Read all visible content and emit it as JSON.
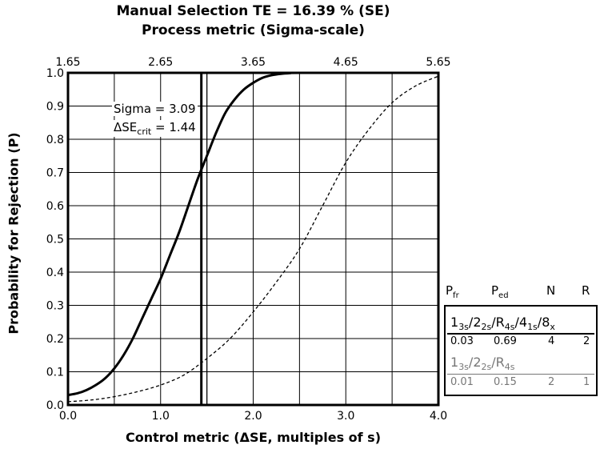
{
  "chart_data": {
    "type": "line",
    "title": "Manual Selection TE = 16.39 % (SE)",
    "subtitle": "Process metric (Sigma-scale)",
    "xlabel": "Control metric (ΔSE, multiples of s)",
    "ylabel": "Probability for Rejection (P)",
    "xlim": [
      0,
      4
    ],
    "ylim": [
      0,
      1
    ],
    "x_ticks": [
      0.0,
      1.0,
      2.0,
      3.0,
      4.0
    ],
    "x_tick_labels": [
      "0.0",
      "1.0",
      "2.0",
      "3.0",
      "4.0"
    ],
    "y_ticks": [
      0.0,
      0.1,
      0.2,
      0.3,
      0.4,
      0.5,
      0.6,
      0.7,
      0.8,
      0.9,
      1.0
    ],
    "y_tick_labels": [
      "0.0",
      "0.1",
      "0.2",
      "0.3",
      "0.4",
      "0.5",
      "0.6",
      "0.7",
      "0.8",
      "0.9",
      "1.0"
    ],
    "top_axis_ticks": [
      1.65,
      2.65,
      3.65,
      4.65,
      5.65
    ],
    "top_axis_tick_labels": [
      "1.65",
      "2.65",
      "3.65",
      "4.65",
      "5.65"
    ],
    "grid": true,
    "series": [
      {
        "style": "solid",
        "x": [
          0,
          0.1,
          0.2,
          0.3,
          0.4,
          0.5,
          0.6,
          0.7,
          0.8,
          0.9,
          1.0,
          1.1,
          1.2,
          1.3,
          1.4,
          1.5,
          1.6,
          1.7,
          1.8,
          1.9,
          2.0,
          2.1,
          2.2,
          2.3,
          2.4,
          2.5,
          4.0
        ],
        "y": [
          0.03,
          0.035,
          0.045,
          0.06,
          0.08,
          0.11,
          0.15,
          0.2,
          0.26,
          0.32,
          0.38,
          0.45,
          0.52,
          0.6,
          0.68,
          0.75,
          0.82,
          0.88,
          0.92,
          0.95,
          0.97,
          0.985,
          0.993,
          0.997,
          0.999,
          1.0,
          1.0
        ]
      },
      {
        "style": "dashed",
        "x": [
          0,
          0.25,
          0.5,
          0.75,
          1.0,
          1.25,
          1.5,
          1.75,
          2.0,
          2.25,
          2.5,
          2.75,
          3.0,
          3.25,
          3.5,
          3.75,
          4.0
        ],
        "y": [
          0.01,
          0.015,
          0.025,
          0.04,
          0.06,
          0.09,
          0.14,
          0.2,
          0.28,
          0.37,
          0.47,
          0.6,
          0.73,
          0.83,
          0.91,
          0.96,
          0.99
        ]
      }
    ],
    "vertical_lines": [
      {
        "x": 1.44,
        "style": "thick"
      },
      {
        "x": 1.5,
        "style": "thin"
      }
    ],
    "annotations": {
      "sigma_label": "Sigma = 3.09",
      "dse_prefix": "ΔSE",
      "dse_sub": "crit",
      "dse_suffix": " = 1.44"
    }
  },
  "legend": {
    "headers": {
      "pfr": "P",
      "pfr_sub": "fr",
      "ped": "P",
      "ped_sub": "ed",
      "n": "N",
      "r": "R"
    },
    "rules": [
      {
        "name_parts": [
          [
            "1",
            "3s"
          ],
          [
            "/2",
            "2s"
          ],
          [
            "/R",
            "4s"
          ],
          [
            "/4",
            "1s"
          ],
          [
            "/8",
            "x"
          ]
        ],
        "pfr": "0.03",
        "ped": "0.69",
        "n": "4",
        "r": "2",
        "color": "#000000"
      },
      {
        "name_parts": [
          [
            "1",
            "3s"
          ],
          [
            "/2",
            "2s"
          ],
          [
            "/R",
            "4s"
          ]
        ],
        "pfr": "0.01",
        "ped": "0.15",
        "n": "2",
        "r": "1",
        "color": "#777777"
      }
    ]
  }
}
